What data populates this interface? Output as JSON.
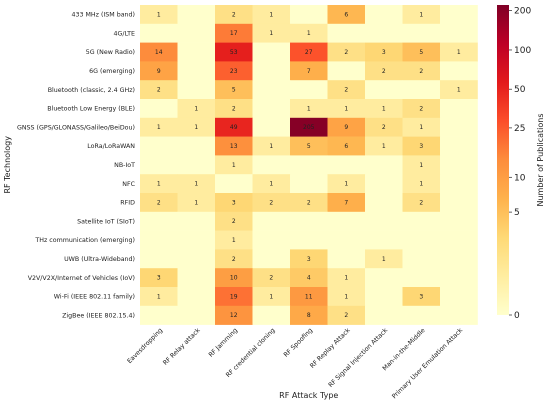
{
  "chart_data": {
    "type": "heatmap",
    "xlabel": "RF Attack Type",
    "ylabel": "RF Technology",
    "colorbar_label": "Number of Publications",
    "columns": [
      "Eavesdropping",
      "RF Relay attack",
      "RF Jamming",
      "RF credential cloning",
      "RF Spoofing",
      "RF Replay Attack",
      "RF Signal Injection Attack",
      "Man-in-the-Middle",
      "Primary User Emulation Attack"
    ],
    "rows": [
      "433 MHz (ISM band)",
      "4G/LTE",
      "5G (New Radio)",
      "6G (emerging)",
      "Bluetooth (classic, 2.4 GHz)",
      "Bluetooth Low Energy (BLE)",
      "GNSS (GPS/GLONASS/Galileo/BeiDou)",
      "LoRa/LoRaWAN",
      "NB-IoT",
      "NFC",
      "RFID",
      "Satellite IoT (SIoT)",
      "THz communication (emerging)",
      "UWB (Ultra-Wideband)",
      "V2V/V2X/Internet of Vehicles (IoV)",
      "Wi-Fi (IEEE 802.11 family)",
      "ZigBee (IEEE 802.15.4)"
    ],
    "values": [
      [
        1,
        0,
        2,
        1,
        0,
        6,
        0,
        1,
        0
      ],
      [
        0,
        0,
        17,
        1,
        1,
        0,
        0,
        0,
        0
      ],
      [
        14,
        0,
        53,
        0,
        27,
        2,
        3,
        5,
        1
      ],
      [
        9,
        0,
        23,
        0,
        7,
        0,
        2,
        2,
        0
      ],
      [
        2,
        0,
        5,
        0,
        0,
        2,
        0,
        0,
        1
      ],
      [
        0,
        1,
        2,
        0,
        1,
        1,
        1,
        2,
        0
      ],
      [
        1,
        1,
        49,
        0,
        205,
        9,
        2,
        1,
        0
      ],
      [
        0,
        0,
        13,
        1,
        5,
        6,
        1,
        3,
        0
      ],
      [
        0,
        0,
        1,
        0,
        0,
        0,
        0,
        1,
        0
      ],
      [
        1,
        1,
        0,
        1,
        0,
        1,
        0,
        1,
        0
      ],
      [
        2,
        1,
        3,
        2,
        2,
        7,
        0,
        2,
        0
      ],
      [
        0,
        0,
        2,
        0,
        0,
        0,
        0,
        0,
        0
      ],
      [
        0,
        0,
        1,
        0,
        0,
        0,
        0,
        0,
        0
      ],
      [
        0,
        0,
        2,
        0,
        3,
        0,
        1,
        0,
        0
      ],
      [
        3,
        0,
        10,
        2,
        4,
        1,
        0,
        0,
        0
      ],
      [
        1,
        0,
        19,
        1,
        11,
        1,
        0,
        3,
        0
      ],
      [
        0,
        0,
        12,
        0,
        8,
        2,
        0,
        0,
        0
      ]
    ],
    "colorbar_ticks": [
      0,
      5,
      10,
      25,
      50,
      100,
      200
    ],
    "colorbar_range": [
      0,
      220
    ],
    "colorbar_scale": "symlog",
    "colormap": "YlOrRd",
    "colors": [
      "#ffffcc",
      "#ffeda0",
      "#fed976",
      "#feb24c",
      "#fd8d3c",
      "#fc4e2a",
      "#e31a1c",
      "#bd0026",
      "#800026"
    ]
  }
}
